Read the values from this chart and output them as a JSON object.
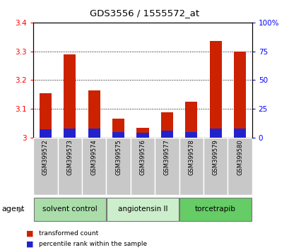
{
  "title": "GDS3556 / 1555572_at",
  "samples": [
    "GSM399572",
    "GSM399573",
    "GSM399574",
    "GSM399575",
    "GSM399576",
    "GSM399577",
    "GSM399578",
    "GSM399579",
    "GSM399580"
  ],
  "red_values": [
    3.155,
    3.29,
    3.165,
    3.065,
    3.033,
    3.088,
    3.125,
    3.335,
    3.3
  ],
  "blue_percentile": [
    7,
    8,
    8,
    5,
    4,
    6,
    5,
    8,
    8
  ],
  "ylim_left": [
    3.0,
    3.4
  ],
  "ylim_right": [
    0,
    100
  ],
  "yticks_left": [
    3.0,
    3.1,
    3.2,
    3.3,
    3.4
  ],
  "yticks_right": [
    0,
    25,
    50,
    75,
    100
  ],
  "ytick_labels_right": [
    "0",
    "25",
    "50",
    "75",
    "100%"
  ],
  "bar_width": 0.5,
  "red_color": "#cc2200",
  "blue_color": "#2222cc",
  "groups": [
    {
      "label": "solvent control",
      "start": 0,
      "end": 3,
      "color": "#aaddaa"
    },
    {
      "label": "angiotensin II",
      "start": 3,
      "end": 6,
      "color": "#cceecc"
    },
    {
      "label": "torcetrapib",
      "start": 6,
      "end": 9,
      "color": "#66cc66"
    }
  ],
  "legend_items": [
    {
      "label": "transformed count",
      "color": "#cc2200"
    },
    {
      "label": "percentile rank within the sample",
      "color": "#2222cc"
    }
  ],
  "agent_label": "agent"
}
